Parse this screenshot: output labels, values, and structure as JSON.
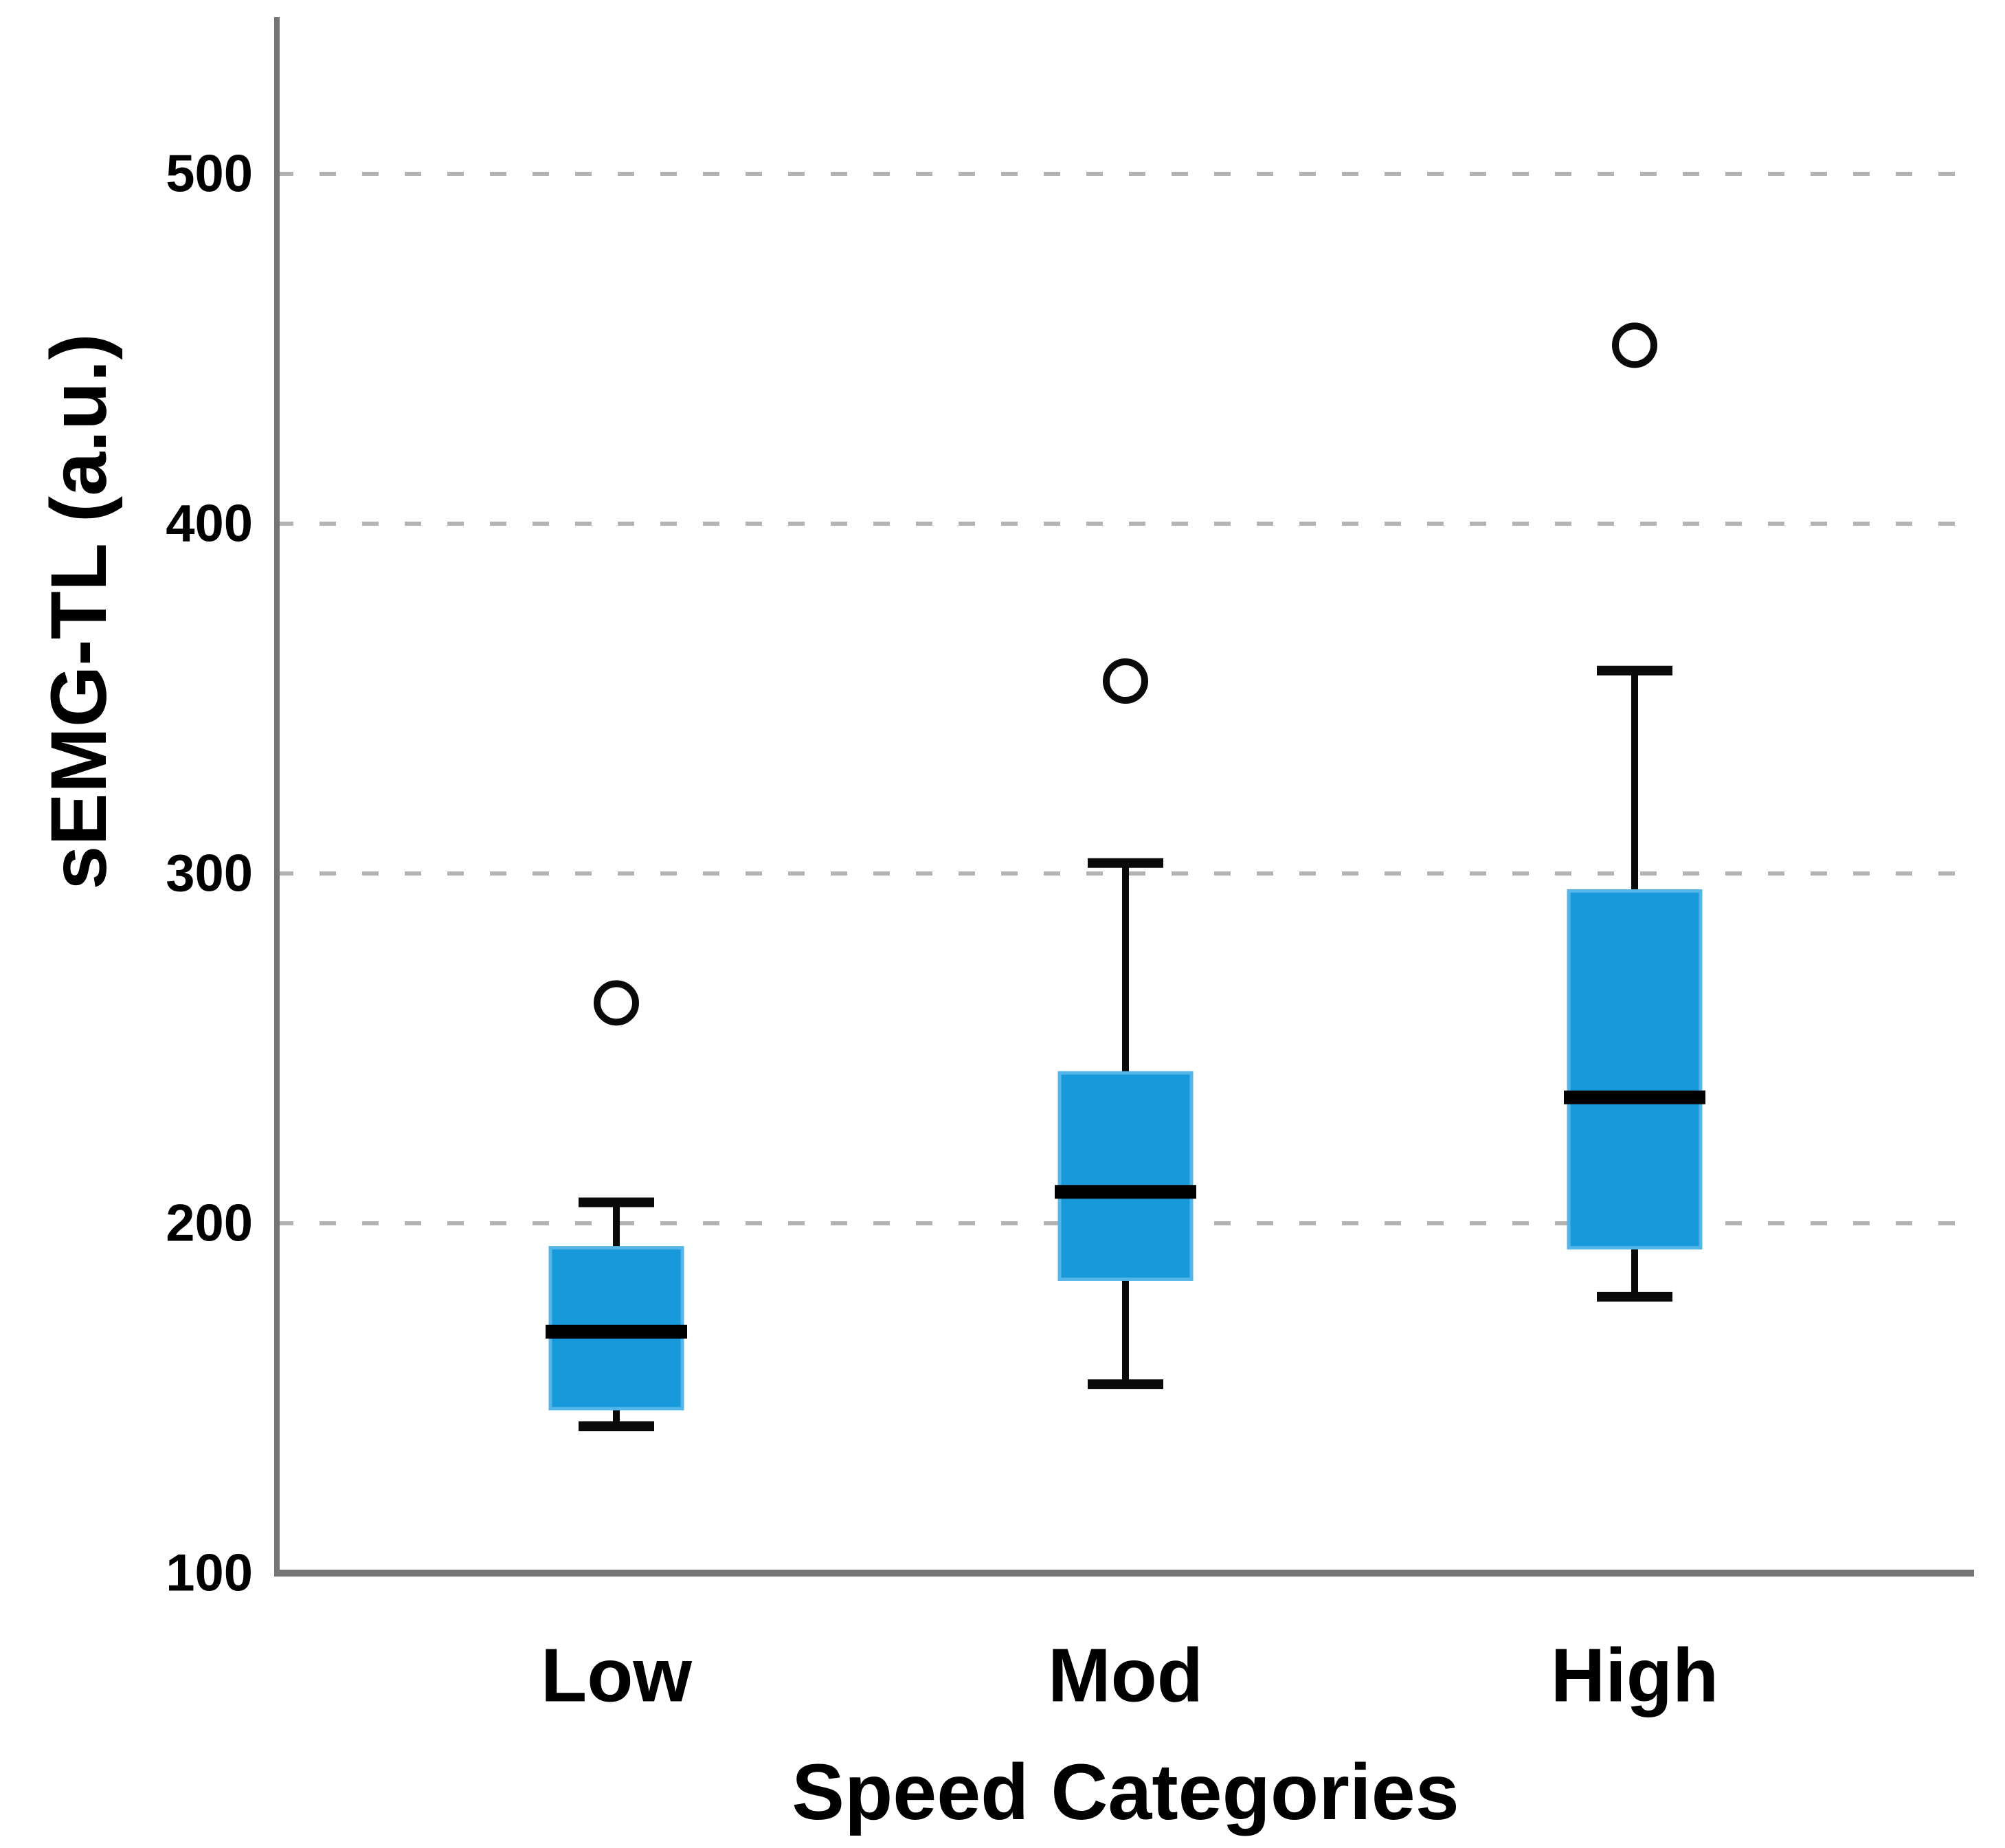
{
  "chart_data": {
    "type": "boxplot",
    "title": "",
    "xlabel": "Speed Categories",
    "ylabel": "sEMG-TL (a.u.)",
    "ylim": [
      100,
      500
    ],
    "yticks": [
      100,
      200,
      300,
      400,
      500
    ],
    "gridlines_at": [
      200,
      300,
      400,
      500
    ],
    "grid_style": "horizontal dashed, behind boxes",
    "legend": "none",
    "categories": [
      "Low",
      "Mod",
      "High"
    ],
    "series": [
      {
        "category": "Low",
        "min": 142,
        "q1": 147,
        "median": 169,
        "q3": 193,
        "max": 206,
        "outliers": [
          263
        ]
      },
      {
        "category": "Mod",
        "min": 154,
        "q1": 184,
        "median": 209,
        "q3": 243,
        "max": 303,
        "outliers": [
          355
        ]
      },
      {
        "category": "High",
        "min": 179,
        "q1": 193,
        "median": 236,
        "q3": 295,
        "max": 358,
        "outliers": [
          451
        ]
      }
    ],
    "colors": {
      "box_fill": "#1899DB",
      "box_edge": "#54B5E7",
      "median_line": "#000000",
      "whisker": "#0a0a0a",
      "outlier_ring": "#0a0a0a",
      "gridline": "#b3b3b3",
      "axis_line": "#757575",
      "text": "#000000",
      "background": "#ffffff"
    }
  }
}
